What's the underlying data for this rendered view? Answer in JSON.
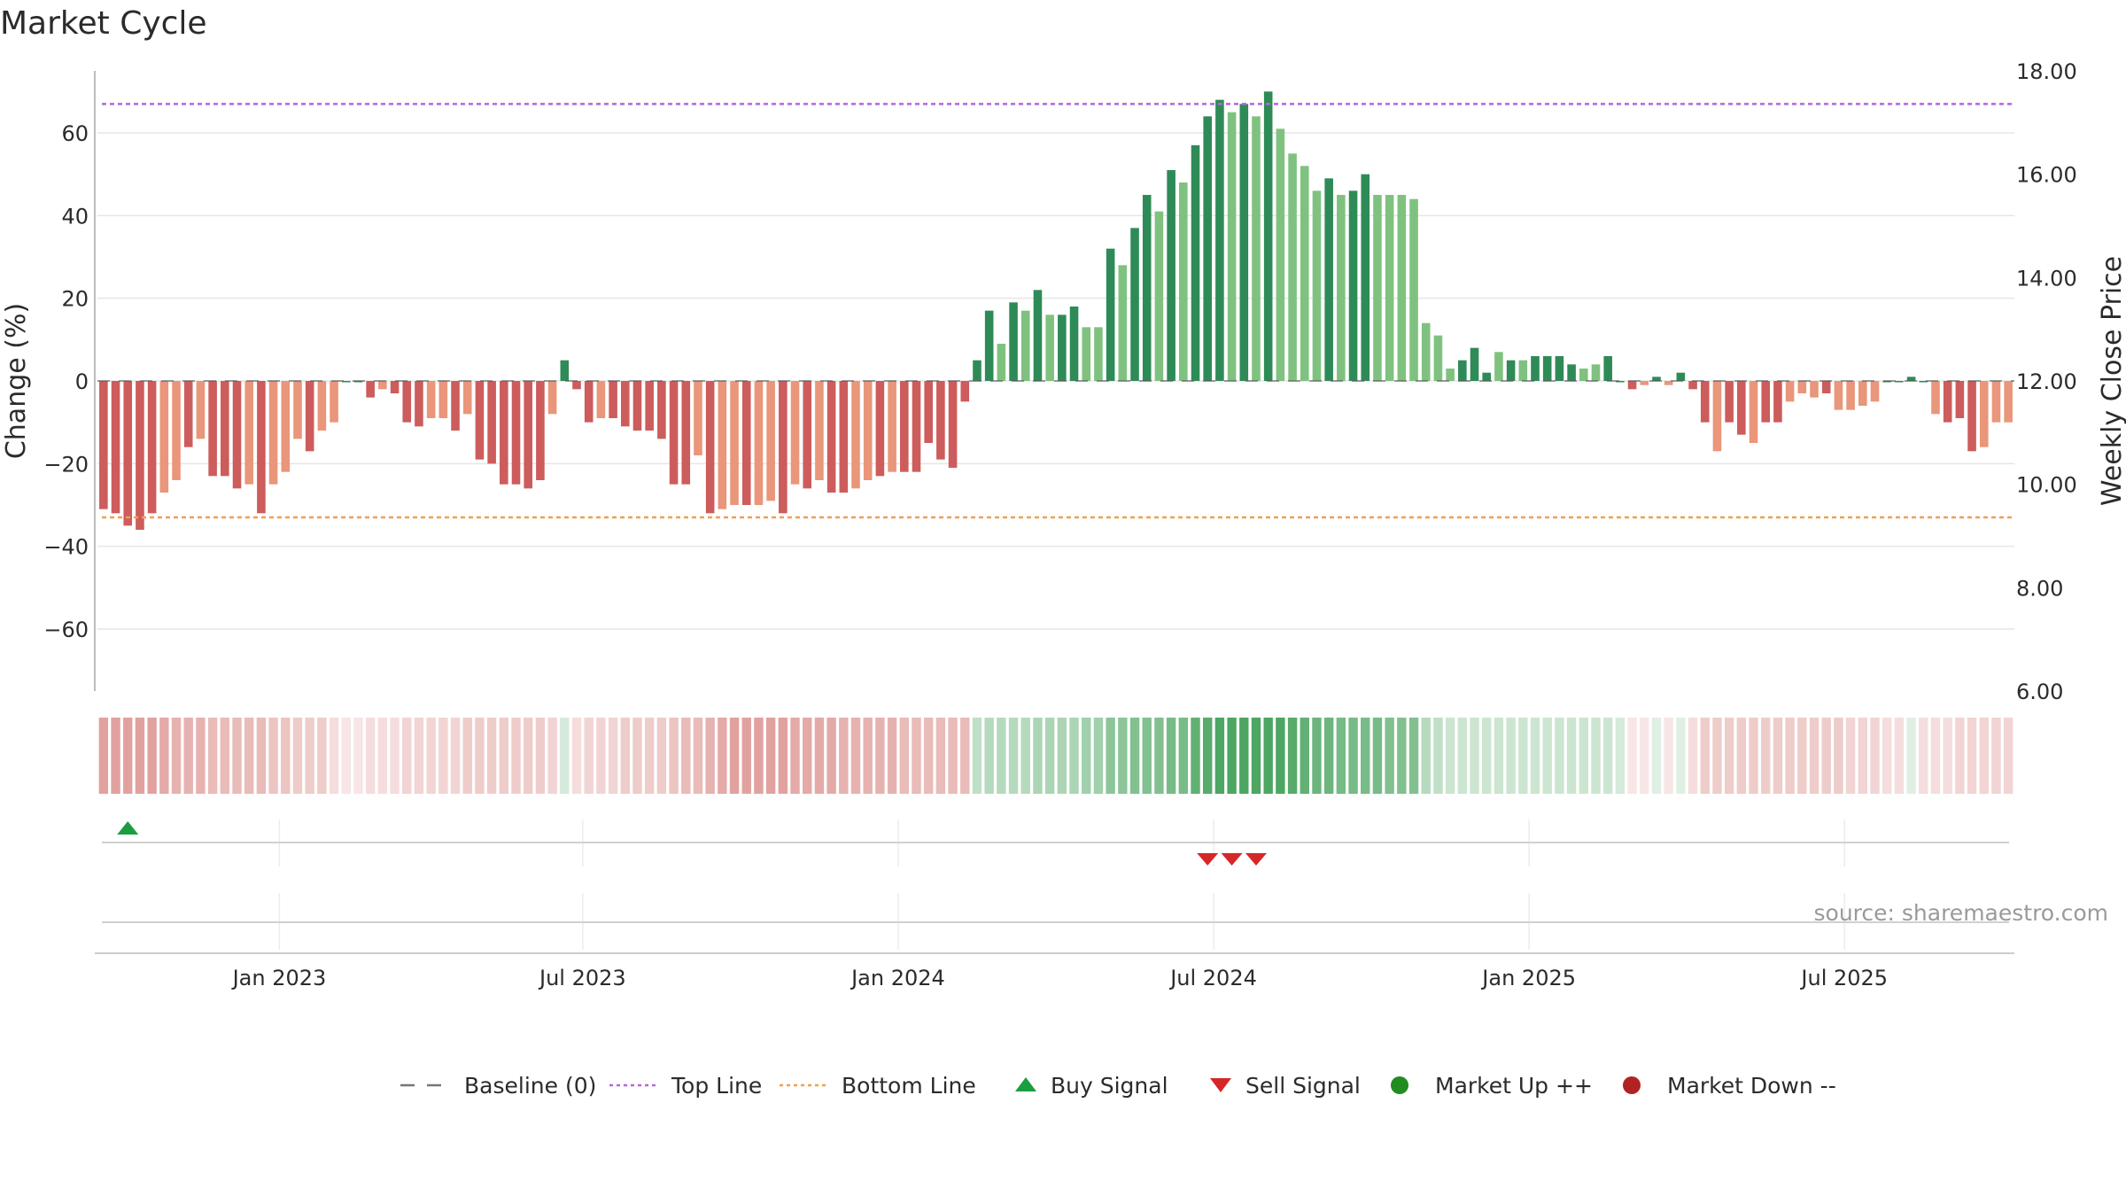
{
  "chart_data": {
    "type": "bar",
    "title": "Market Cycle",
    "ylabel_left": "Change (%)",
    "ylabel_right": "Weekly Close Price",
    "ylim_left": [
      -75,
      75
    ],
    "ylim_right": [
      6,
      18
    ],
    "yticks_left": [
      60,
      40,
      20,
      0,
      -20,
      -40,
      -60
    ],
    "ytick_labels_left": [
      "60",
      "40",
      "20",
      "0",
      "−20",
      "−40",
      "−60"
    ],
    "yticks_right": [
      18,
      16,
      14,
      12,
      10,
      8,
      6
    ],
    "ytick_labels_right": [
      "18.00",
      "16.00",
      "14.00",
      "12.00",
      "10.00",
      "8.00",
      "6.00"
    ],
    "xtick_labels": [
      "Jan 2023",
      "Jul 2023",
      "Jan 2024",
      "Jul 2024",
      "Jan 2025",
      "Jul 2025"
    ],
    "xtick_index": [
      15,
      40,
      66,
      92,
      118,
      144
    ],
    "top_line": 67,
    "bottom_line": -33,
    "colors": {
      "up_strong": "#2e8b57",
      "up_weak": "#7fc27f",
      "down_strong": "#cd5c5c",
      "down_weak": "#e9967a",
      "top_line": "#b366e0",
      "bottom_line": "#f0a050",
      "buy_signal": "#1a9e40",
      "sell_signal": "#d62728",
      "market_up": "#228b22",
      "market_down": "#b22222",
      "grid": "#e6e6e6"
    },
    "values": [
      -31,
      -32,
      -35,
      -36,
      -32,
      -27,
      -24,
      -16,
      -14,
      -23,
      -23,
      -26,
      -25,
      -32,
      -25,
      -22,
      -14,
      -17,
      -12,
      -10,
      0,
      0,
      -4,
      -2,
      -3,
      -10,
      -11,
      -9,
      -9,
      -12,
      -8,
      -19,
      -20,
      -25,
      -25,
      -26,
      -24,
      -8,
      5,
      -2,
      -10,
      -9,
      -9,
      -11,
      -12,
      -12,
      -14,
      -25,
      -25,
      -18,
      -32,
      -31,
      -30,
      -30,
      -30,
      -29,
      -32,
      -25,
      -26,
      -24,
      -27,
      -27,
      -26,
      -24,
      -23,
      -22,
      -22,
      -22,
      -15,
      -19,
      -21,
      -5,
      5,
      17,
      9,
      19,
      17,
      22,
      16,
      16,
      18,
      13,
      13,
      32,
      28,
      37,
      45,
      41,
      51,
      48,
      57,
      64,
      68,
      65,
      67,
      64,
      70,
      61,
      55,
      52,
      46,
      49,
      45,
      46,
      50,
      45,
      45,
      45,
      44,
      14,
      11,
      3,
      5,
      8,
      2,
      7,
      5,
      5,
      6,
      6,
      6,
      4,
      3,
      4,
      6,
      0,
      -2,
      -1,
      1,
      -1,
      2,
      -2,
      -10,
      -17,
      -10,
      -13,
      -15,
      -10,
      -10,
      -5,
      -3,
      -4,
      -3,
      -7,
      -7,
      -6,
      -5,
      0,
      0,
      1,
      0,
      -8,
      -10,
      -9,
      -17,
      -16,
      -10,
      -10
    ],
    "strength": [
      1,
      1,
      1,
      1,
      1,
      0,
      0,
      1,
      0,
      1,
      1,
      1,
      0,
      1,
      0,
      0,
      0,
      1,
      0,
      0,
      1,
      1,
      1,
      0,
      1,
      1,
      1,
      0,
      0,
      1,
      0,
      1,
      1,
      1,
      1,
      1,
      1,
      0,
      1,
      1,
      1,
      0,
      1,
      1,
      1,
      1,
      1,
      1,
      1,
      0,
      1,
      0,
      0,
      1,
      0,
      0,
      1,
      0,
      1,
      0,
      1,
      1,
      0,
      0,
      1,
      0,
      1,
      1,
      1,
      1,
      1,
      1,
      1,
      1,
      0,
      1,
      0,
      1,
      0,
      1,
      1,
      0,
      0,
      1,
      0,
      1,
      1,
      0,
      1,
      0,
      1,
      1,
      1,
      0,
      1,
      0,
      1,
      0,
      0,
      0,
      0,
      1,
      0,
      1,
      1,
      0,
      0,
      0,
      0,
      0,
      0,
      0,
      1,
      1,
      1,
      0,
      1,
      0,
      1,
      1,
      1,
      1,
      0,
      0,
      1,
      1,
      1,
      0,
      1,
      0,
      1,
      1,
      1,
      0,
      1,
      1,
      0,
      1,
      1,
      0,
      0,
      0,
      1,
      0,
      0,
      0,
      0,
      1,
      1,
      1,
      1,
      0,
      1,
      1,
      1,
      0,
      0,
      0
    ],
    "heat": [
      -0.55,
      -0.55,
      -0.55,
      -0.55,
      -0.55,
      -0.5,
      -0.45,
      -0.45,
      -0.45,
      -0.4,
      -0.4,
      -0.4,
      -0.4,
      -0.4,
      -0.35,
      -0.35,
      -0.3,
      -0.3,
      -0.3,
      -0.2,
      -0.15,
      -0.15,
      -0.2,
      -0.2,
      -0.2,
      -0.25,
      -0.25,
      -0.25,
      -0.25,
      -0.25,
      -0.3,
      -0.3,
      -0.3,
      -0.3,
      -0.3,
      -0.3,
      -0.3,
      -0.25,
      0.2,
      -0.2,
      -0.25,
      -0.25,
      -0.25,
      -0.3,
      -0.3,
      -0.3,
      -0.3,
      -0.35,
      -0.4,
      -0.4,
      -0.45,
      -0.5,
      -0.55,
      -0.55,
      -0.55,
      -0.55,
      -0.55,
      -0.5,
      -0.5,
      -0.5,
      -0.5,
      -0.45,
      -0.45,
      -0.45,
      -0.45,
      -0.45,
      -0.4,
      -0.4,
      -0.4,
      -0.4,
      -0.4,
      -0.4,
      0.3,
      0.35,
      0.35,
      0.35,
      0.35,
      0.4,
      0.4,
      0.4,
      0.4,
      0.45,
      0.45,
      0.55,
      0.55,
      0.6,
      0.6,
      0.6,
      0.65,
      0.65,
      0.75,
      0.8,
      0.85,
      0.85,
      0.85,
      0.85,
      0.85,
      0.85,
      0.8,
      0.75,
      0.7,
      0.7,
      0.65,
      0.65,
      0.65,
      0.65,
      0.6,
      0.6,
      0.6,
      0.35,
      0.3,
      0.25,
      0.25,
      0.25,
      0.25,
      0.25,
      0.25,
      0.25,
      0.25,
      0.25,
      0.25,
      0.25,
      0.25,
      0.25,
      0.25,
      0.2,
      -0.15,
      -0.15,
      0.15,
      -0.15,
      0.15,
      -0.2,
      -0.3,
      -0.3,
      -0.3,
      -0.3,
      -0.3,
      -0.3,
      -0.3,
      -0.3,
      -0.3,
      -0.3,
      -0.3,
      -0.3,
      -0.25,
      -0.25,
      -0.25,
      -0.2,
      -0.2,
      0.15,
      -0.2,
      -0.2,
      -0.2,
      -0.25,
      -0.25,
      -0.25,
      -0.25,
      -0.25
    ],
    "buy_signals": [
      2
    ],
    "sell_signals": [
      91,
      93,
      95
    ],
    "market_up": [],
    "market_down": []
  },
  "source": "source: sharemaestro.com",
  "legend": [
    {
      "label": "Baseline (0)",
      "icon": "dashed-line-icon",
      "color": "#777777"
    },
    {
      "label": "Top Line",
      "icon": "dotted-line-icon",
      "color": "#b366e0"
    },
    {
      "label": "Bottom Line",
      "icon": "dotted-line-icon",
      "color": "#f0a050"
    },
    {
      "label": "Buy Signal",
      "icon": "triangle-up-icon",
      "color": "#1a9e40"
    },
    {
      "label": "Sell Signal",
      "icon": "triangle-down-icon",
      "color": "#d62728"
    },
    {
      "label": "Market Up ++",
      "icon": "circle-icon",
      "color": "#228b22"
    },
    {
      "label": "Market Down --",
      "icon": "circle-icon",
      "color": "#b22222"
    }
  ]
}
